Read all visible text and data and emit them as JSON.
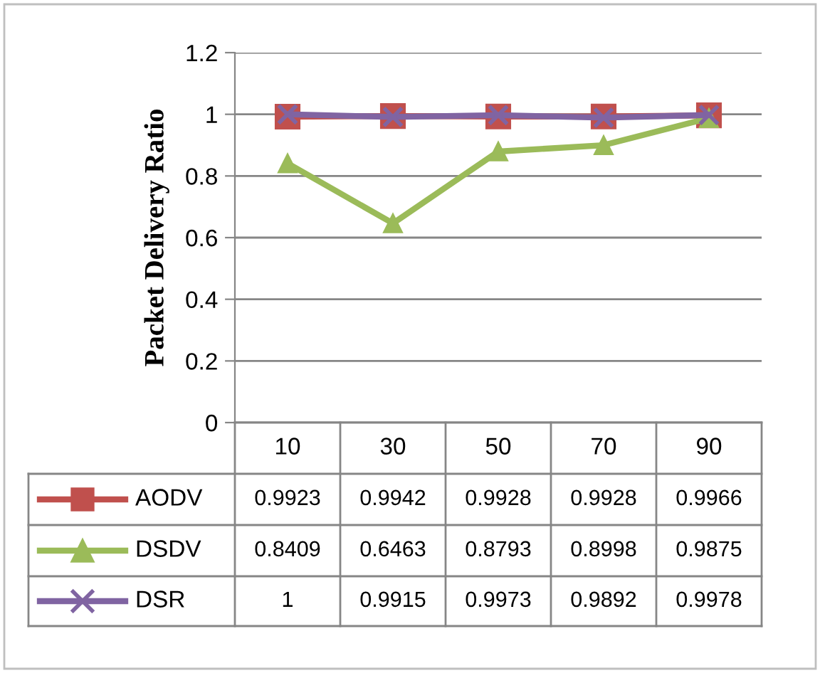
{
  "chart_data": {
    "type": "line",
    "ylabel": "Packet Delivery Ratio",
    "categories": [
      "10",
      "30",
      "50",
      "70",
      "90"
    ],
    "ylim": [
      0,
      1.2
    ],
    "yticks": [
      0,
      0.2,
      0.4,
      0.6,
      0.8,
      1,
      1.2
    ],
    "grid": "y",
    "legend": "bottom",
    "data_labels": true,
    "line_style": "solid",
    "series": [
      {
        "name": "AODV",
        "color": "#c0504d",
        "marker": "square",
        "values": [
          0.9923,
          0.9942,
          0.9928,
          0.9928,
          0.9966
        ]
      },
      {
        "name": "DSDV",
        "color": "#9bbb59",
        "marker": "triangle",
        "values": [
          0.8409,
          0.6463,
          0.8793,
          0.8998,
          0.9875
        ]
      },
      {
        "name": "DSR",
        "color": "#8064a2",
        "marker": "cross",
        "values": [
          1,
          0.9915,
          0.9973,
          0.9892,
          0.9978
        ]
      }
    ]
  }
}
